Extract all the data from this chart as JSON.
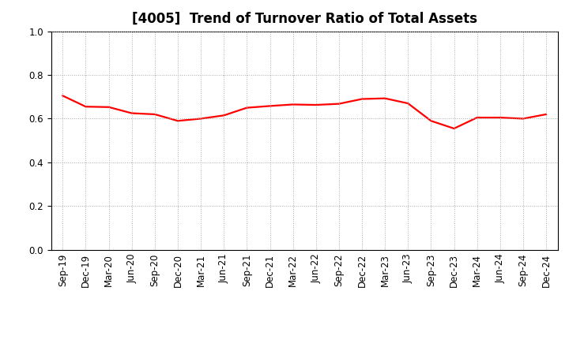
{
  "title": "[4005]  Trend of Turnover Ratio of Total Assets",
  "x_labels": [
    "Sep-19",
    "Dec-19",
    "Mar-20",
    "Jun-20",
    "Sep-20",
    "Dec-20",
    "Mar-21",
    "Jun-21",
    "Sep-21",
    "Dec-21",
    "Mar-22",
    "Jun-22",
    "Sep-22",
    "Dec-22",
    "Mar-23",
    "Jun-23",
    "Sep-23",
    "Dec-23",
    "Mar-24",
    "Jun-24",
    "Sep-24",
    "Dec-24"
  ],
  "y_values": [
    0.705,
    0.655,
    0.653,
    0.625,
    0.62,
    0.59,
    0.6,
    0.615,
    0.65,
    0.658,
    0.665,
    0.663,
    0.668,
    0.69,
    0.693,
    0.67,
    0.59,
    0.555,
    0.605,
    0.605,
    0.6,
    0.62
  ],
  "line_color": "#FF0000",
  "line_width": 1.6,
  "ylim": [
    0.0,
    1.0
  ],
  "yticks": [
    0.0,
    0.2,
    0.4,
    0.6,
    0.8,
    1.0
  ],
  "background_color": "#FFFFFF",
  "grid_color": "#AAAAAA",
  "title_fontsize": 12,
  "tick_fontsize": 8.5
}
